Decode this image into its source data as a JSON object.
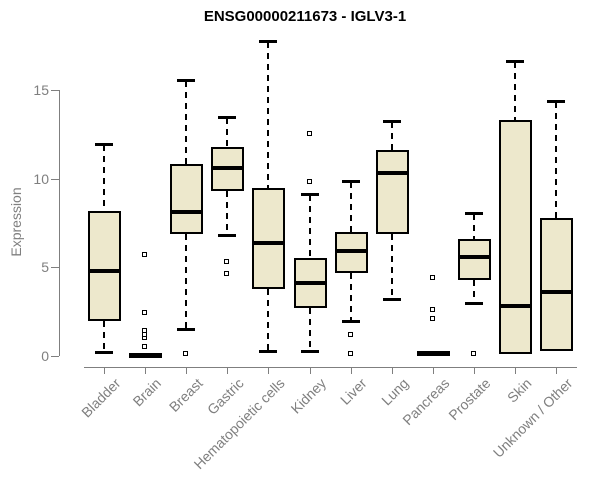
{
  "chart_data": {
    "type": "boxplot",
    "title": "ENSG00000211673 - IGLV3-1",
    "ylabel": "Expression",
    "xlabel": "",
    "yticks": [
      "0",
      "5",
      "10",
      "15"
    ],
    "ytick_values": [
      0,
      5,
      10,
      15
    ],
    "ylim": [
      0,
      15
    ],
    "grid": "off",
    "legend": "none",
    "box_fill_color": "#EDE8CC",
    "box_border_color": "#000000",
    "axis_color": "#7f7f7f",
    "tick_label_color": "#7f7f7f",
    "title_color": "#000000",
    "categories": [
      "Bladder",
      "Brain",
      "Breast",
      "Gastric",
      "Hematopoietic cells",
      "Kidney",
      "Liver",
      "Lung",
      "Pancreas",
      "Prostate",
      "Skin",
      "Unknown / Other"
    ],
    "series": [
      {
        "name": "Bladder",
        "whislo": 0.2,
        "q1": 2.0,
        "med": 4.8,
        "q3": 8.2,
        "whishi": 11.9,
        "outliers": []
      },
      {
        "name": "Brain",
        "whislo": 0.0,
        "q1": 0.0,
        "med": 0.05,
        "q3": 0.1,
        "whishi": 0.1,
        "outliers": [
          0.5,
          1.0,
          1.2,
          1.4,
          2.4,
          5.7
        ]
      },
      {
        "name": "Breast",
        "whislo": 1.5,
        "q1": 6.9,
        "med": 8.1,
        "q3": 10.8,
        "whishi": 15.5,
        "outliers": [
          0.1
        ]
      },
      {
        "name": "Gastric",
        "whislo": 6.8,
        "q1": 9.3,
        "med": 10.6,
        "q3": 11.8,
        "whishi": 13.4,
        "outliers": [
          4.6,
          5.3
        ]
      },
      {
        "name": "Hematopoietic cells",
        "whislo": 0.3,
        "q1": 3.8,
        "med": 6.4,
        "q3": 9.5,
        "whishi": 17.7,
        "outliers": []
      },
      {
        "name": "Kidney",
        "whislo": 0.3,
        "q1": 2.7,
        "med": 4.1,
        "q3": 5.5,
        "whishi": 9.1,
        "outliers": [
          9.8,
          12.5
        ]
      },
      {
        "name": "Liver",
        "whislo": 2.0,
        "q1": 4.7,
        "med": 5.9,
        "q3": 7.0,
        "whishi": 9.8,
        "outliers": [
          0.1,
          1.2
        ]
      },
      {
        "name": "Lung",
        "whislo": 3.2,
        "q1": 6.9,
        "med": 10.3,
        "q3": 11.6,
        "whishi": 13.2,
        "outliers": []
      },
      {
        "name": "Pancreas",
        "whislo": 0.0,
        "q1": 0.05,
        "med": 0.15,
        "q3": 0.25,
        "whishi": 0.25,
        "outliers": [
          2.1,
          2.6,
          4.4
        ]
      },
      {
        "name": "Prostate",
        "whislo": 3.0,
        "q1": 4.3,
        "med": 5.6,
        "q3": 6.6,
        "whishi": 8.0,
        "outliers": [
          0.1
        ]
      },
      {
        "name": "Skin",
        "whislo": 0.1,
        "q1": 0.1,
        "med": 2.8,
        "q3": 13.3,
        "whishi": 16.6,
        "outliers": []
      },
      {
        "name": "Unknown / Other",
        "whislo": 0.3,
        "q1": 0.3,
        "med": 3.6,
        "q3": 7.8,
        "whishi": 14.3,
        "outliers": []
      }
    ]
  }
}
